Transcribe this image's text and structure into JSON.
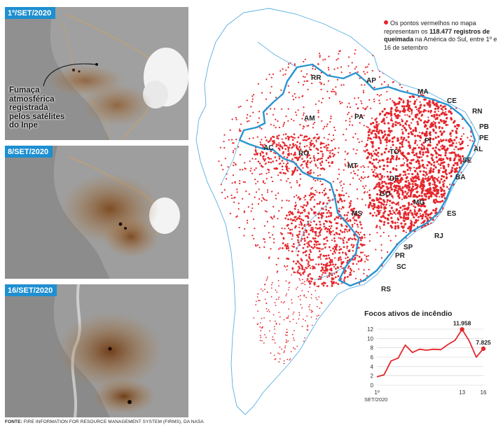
{
  "panels": [
    {
      "date_label": "1º/SET/2020"
    },
    {
      "date_label": "8/SET/2020"
    },
    {
      "date_label": "16/SET/2020"
    }
  ],
  "smoke_note": "Fumaça\natmosférica\nregistrada\npelos satélites\ndo Inpe",
  "source": {
    "bold": "FONTE:",
    "text": " FIRE INFORMATION FOR RESOURCE MANAGEMENT SYSTEM (FIRMS), DA NASA"
  },
  "legend": {
    "pre": "Os pontos vermelhos no mapa representam os ",
    "bold": "118.477 registros de queimada",
    "post": " na América do Sul, entre 1º e 16 de setembro"
  },
  "states": [
    "RR",
    "AP",
    "MA",
    "CE",
    "RN",
    "PB",
    "PE",
    "AL",
    "SE",
    "BA",
    "AM",
    "PA",
    "PI",
    "AC",
    "RO",
    "TO",
    "MT",
    "DF",
    "GO",
    "MG",
    "ES",
    "RJ",
    "MS",
    "SP",
    "PR",
    "SC",
    "RS"
  ],
  "colors": {
    "fire": "#e5262c",
    "border": "#2a95d0",
    "smoke": "#b07a3e",
    "tag": "#1e8fd0"
  },
  "chart_data": {
    "type": "line",
    "title": "Focos ativos de incêndio",
    "x": [
      1,
      2,
      3,
      4,
      5,
      6,
      7,
      8,
      9,
      10,
      11,
      12,
      13,
      14,
      15,
      16
    ],
    "values": [
      1.8,
      2.2,
      5.2,
      5.8,
      8.6,
      7.0,
      7.7,
      7.5,
      7.7,
      7.6,
      8.7,
      9.6,
      11.958,
      9.5,
      6.0,
      7.825
    ],
    "yticks": [
      "0",
      "2",
      "4",
      "6",
      "8",
      "10",
      "12"
    ],
    "ylim": [
      0,
      12
    ],
    "xtick_labels": [
      {
        "x": 1,
        "label": "1º"
      },
      {
        "x": 13,
        "label": "13"
      },
      {
        "x": 16,
        "label": "16"
      }
    ],
    "xsub": "SET/2020",
    "annotations": [
      {
        "x": 13,
        "label": "11.958"
      },
      {
        "x": 16,
        "label": "7.825"
      }
    ]
  }
}
